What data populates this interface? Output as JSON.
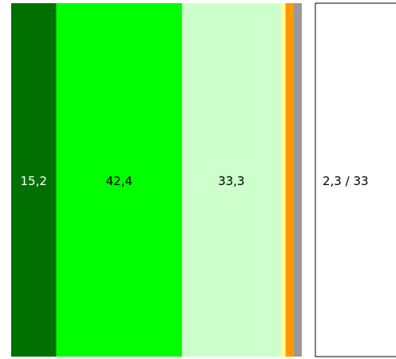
{
  "chart_data": {
    "type": "bar",
    "orientation": "stacked-100-percent",
    "segments": [
      {
        "value": 15.2,
        "label": "15,2",
        "color": "#007000"
      },
      {
        "value": 42.4,
        "label": "42,4",
        "color": "#00ff00"
      },
      {
        "value": 33.3,
        "label": "33,3",
        "color": "#ccffcc"
      },
      {
        "value": 1.6,
        "label": "",
        "color": "#ffff99"
      },
      {
        "value": 2.8,
        "label": "",
        "color": "#ff9900"
      },
      {
        "value": 2.7,
        "label": "",
        "color": "#999999"
      }
    ],
    "tooltip": {
      "text": "2,3 / 33"
    },
    "legend": "none",
    "grid": false
  },
  "colors": {
    "label_light": "#ffffff",
    "label_dark": "#000000",
    "tooltip_border": "#000000",
    "tooltip_background": "#ffffff"
  }
}
